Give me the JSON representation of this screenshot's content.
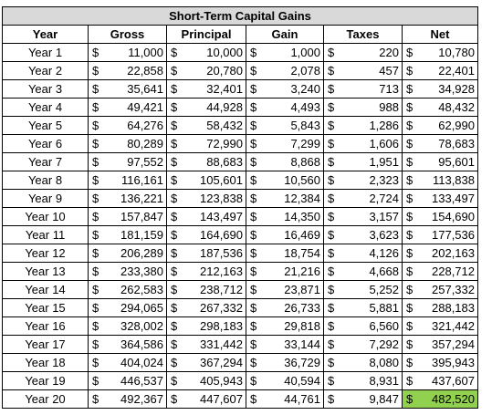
{
  "title": "Short-Term Capital Gains",
  "headers": [
    "Year",
    "Gross",
    "Principal",
    "Gain",
    "Taxes",
    "Net"
  ],
  "currency_symbol": "$",
  "highlight_color": "#92d050",
  "rows": [
    {
      "year": "Year 1",
      "gross": "11,000",
      "principal": "10,000",
      "gain": "1,000",
      "taxes": "220",
      "net": "10,780"
    },
    {
      "year": "Year 2",
      "gross": "22,858",
      "principal": "20,780",
      "gain": "2,078",
      "taxes": "457",
      "net": "22,401"
    },
    {
      "year": "Year 3",
      "gross": "35,641",
      "principal": "32,401",
      "gain": "3,240",
      "taxes": "713",
      "net": "34,928"
    },
    {
      "year": "Year 4",
      "gross": "49,421",
      "principal": "44,928",
      "gain": "4,493",
      "taxes": "988",
      "net": "48,432"
    },
    {
      "year": "Year 5",
      "gross": "64,276",
      "principal": "58,432",
      "gain": "5,843",
      "taxes": "1,286",
      "net": "62,990"
    },
    {
      "year": "Year 6",
      "gross": "80,289",
      "principal": "72,990",
      "gain": "7,299",
      "taxes": "1,606",
      "net": "78,683"
    },
    {
      "year": "Year 7",
      "gross": "97,552",
      "principal": "88,683",
      "gain": "8,868",
      "taxes": "1,951",
      "net": "95,601"
    },
    {
      "year": "Year 8",
      "gross": "116,161",
      "principal": "105,601",
      "gain": "10,560",
      "taxes": "2,323",
      "net": "113,838"
    },
    {
      "year": "Year 9",
      "gross": "136,221",
      "principal": "123,838",
      "gain": "12,384",
      "taxes": "2,724",
      "net": "133,497"
    },
    {
      "year": "Year 10",
      "gross": "157,847",
      "principal": "143,497",
      "gain": "14,350",
      "taxes": "3,157",
      "net": "154,690"
    },
    {
      "year": "Year 11",
      "gross": "181,159",
      "principal": "164,690",
      "gain": "16,469",
      "taxes": "3,623",
      "net": "177,536"
    },
    {
      "year": "Year 12",
      "gross": "206,289",
      "principal": "187,536",
      "gain": "18,754",
      "taxes": "4,126",
      "net": "202,163"
    },
    {
      "year": "Year 13",
      "gross": "233,380",
      "principal": "212,163",
      "gain": "21,216",
      "taxes": "4,668",
      "net": "228,712"
    },
    {
      "year": "Year 14",
      "gross": "262,583",
      "principal": "238,712",
      "gain": "23,871",
      "taxes": "5,252",
      "net": "257,332"
    },
    {
      "year": "Year 15",
      "gross": "294,065",
      "principal": "267,332",
      "gain": "26,733",
      "taxes": "5,881",
      "net": "288,183"
    },
    {
      "year": "Year 16",
      "gross": "328,002",
      "principal": "298,183",
      "gain": "29,818",
      "taxes": "6,560",
      "net": "321,442"
    },
    {
      "year": "Year 17",
      "gross": "364,586",
      "principal": "331,442",
      "gain": "33,144",
      "taxes": "7,292",
      "net": "357,294"
    },
    {
      "year": "Year 18",
      "gross": "404,024",
      "principal": "367,294",
      "gain": "36,729",
      "taxes": "8,080",
      "net": "395,943"
    },
    {
      "year": "Year 19",
      "gross": "446,537",
      "principal": "405,943",
      "gain": "40,594",
      "taxes": "8,931",
      "net": "437,607"
    },
    {
      "year": "Year 20",
      "gross": "492,367",
      "principal": "447,607",
      "gain": "44,761",
      "taxes": "9,847",
      "net": "482,520",
      "highlight_net": true
    }
  ]
}
